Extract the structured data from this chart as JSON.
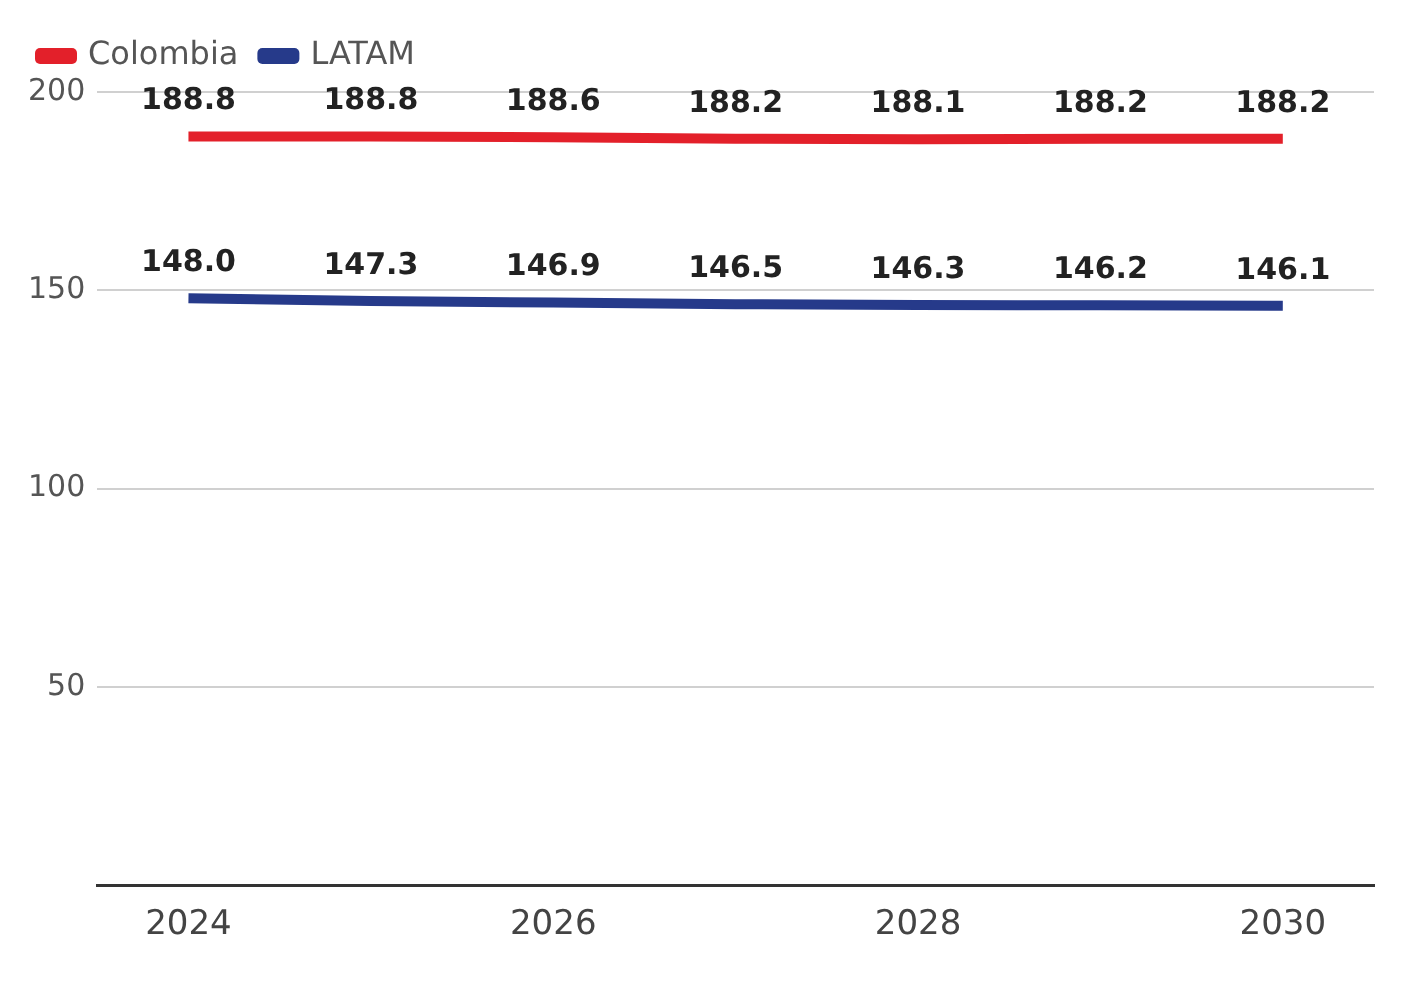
{
  "chart_data": {
    "type": "line",
    "categories": [
      "2024",
      null,
      "2026",
      null,
      "2028",
      null,
      "2030"
    ],
    "series": [
      {
        "name": "Colombia",
        "color": "#e3202a",
        "values": [
          188.8,
          188.8,
          188.6,
          188.2,
          188.1,
          188.2,
          188.2
        ],
        "value_labels": [
          "188.8",
          "188.8",
          "188.6",
          "188.2",
          "188.1",
          "188.2",
          "188.2"
        ]
      },
      {
        "name": "LATAM",
        "color": "#263a8a",
        "values": [
          148.0,
          147.3,
          146.9,
          146.5,
          146.3,
          146.2,
          146.1
        ],
        "value_labels": [
          "148.0",
          "147.3",
          "146.9",
          "146.5",
          "146.3",
          "146.2",
          "146.1"
        ]
      }
    ],
    "ylim": [
      0,
      200
    ],
    "yticks": [
      {
        "value": 0,
        "label": null
      },
      50,
      100,
      150,
      200
    ],
    "grid": "y",
    "legend": "top left",
    "marker": "none",
    "line_style": "solid"
  }
}
